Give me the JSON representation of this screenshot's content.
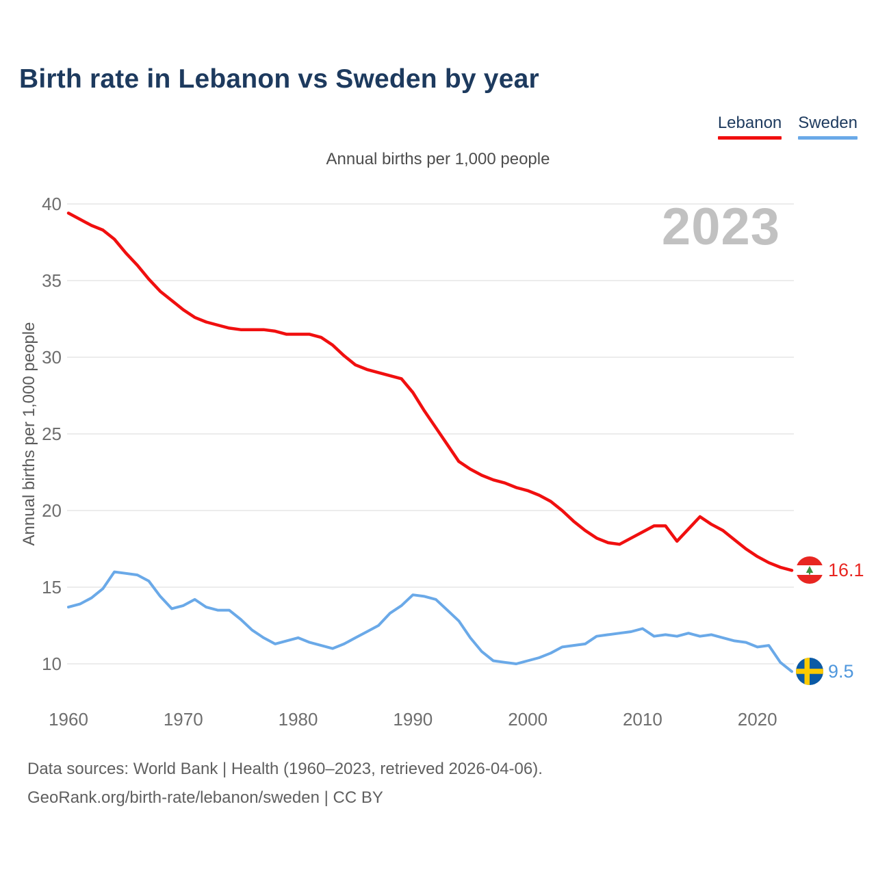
{
  "title": "Birth rate in Lebanon vs Sweden by year",
  "subtitle": "Annual births per 1,000 people",
  "watermark": "2023",
  "legend": {
    "items": [
      {
        "label": "Lebanon",
        "color": "#f00f0f"
      },
      {
        "label": "Sweden",
        "color": "#6aa9e8"
      }
    ]
  },
  "y_axis": {
    "title": "Annual births per 1,000 people",
    "ticks": [
      40,
      35,
      30,
      25,
      20,
      15,
      10
    ]
  },
  "x_axis": {
    "ticks": [
      1960,
      1970,
      1980,
      1990,
      2000,
      2010,
      2020
    ]
  },
  "end_labels": [
    {
      "series": "Lebanon",
      "value": "16.1",
      "color": "#e82621",
      "flag": "lebanon-flag-icon"
    },
    {
      "series": "Sweden",
      "value": "9.5",
      "color": "#4f97dd",
      "flag": "sweden-flag-icon"
    }
  ],
  "footer": {
    "line1": "Data sources: World Bank | Health (1960–2023, retrieved 2026-04-06).",
    "line2": "GeoRank.org/birth-rate/lebanon/sweden | CC BY"
  },
  "chart_data": {
    "type": "line",
    "title": "Birth rate in Lebanon vs Sweden by year",
    "xlabel": "",
    "ylabel": "Annual births per 1,000 people",
    "ylim": [
      10,
      40
    ],
    "xlim": [
      1960,
      2023
    ],
    "grid": "horizontal",
    "legend_position": "top-right",
    "x": [
      1960,
      1961,
      1962,
      1963,
      1964,
      1965,
      1966,
      1967,
      1968,
      1969,
      1970,
      1971,
      1972,
      1973,
      1974,
      1975,
      1976,
      1977,
      1978,
      1979,
      1980,
      1981,
      1982,
      1983,
      1984,
      1985,
      1986,
      1987,
      1988,
      1989,
      1990,
      1991,
      1992,
      1993,
      1994,
      1995,
      1996,
      1997,
      1998,
      1999,
      2000,
      2001,
      2002,
      2003,
      2004,
      2005,
      2006,
      2007,
      2008,
      2009,
      2010,
      2011,
      2012,
      2013,
      2014,
      2015,
      2016,
      2017,
      2018,
      2019,
      2020,
      2021,
      2022,
      2023
    ],
    "series": [
      {
        "name": "Lebanon",
        "color": "#f00f0f",
        "stroke_width": 4.5,
        "values": [
          39.4,
          39.0,
          38.6,
          38.3,
          37.7,
          36.8,
          36.0,
          35.1,
          34.3,
          33.7,
          33.1,
          32.6,
          32.3,
          32.1,
          31.9,
          31.8,
          31.8,
          31.8,
          31.7,
          31.5,
          31.5,
          31.5,
          31.3,
          30.8,
          30.1,
          29.5,
          29.2,
          29.0,
          28.8,
          28.6,
          27.7,
          26.5,
          25.4,
          24.3,
          23.2,
          22.7,
          22.3,
          22.0,
          21.8,
          21.5,
          21.3,
          21.0,
          20.6,
          20.0,
          19.3,
          18.7,
          18.2,
          17.9,
          17.8,
          18.2,
          18.6,
          19.0,
          19.0,
          18.0,
          18.8,
          19.6,
          19.1,
          18.7,
          18.1,
          17.5,
          17.0,
          16.6,
          16.3,
          16.1
        ]
      },
      {
        "name": "Sweden",
        "color": "#6aa9e8",
        "stroke_width": 4,
        "values": [
          13.7,
          13.9,
          14.3,
          14.9,
          16.0,
          15.9,
          15.8,
          15.4,
          14.4,
          13.6,
          13.8,
          14.2,
          13.7,
          13.5,
          13.5,
          12.9,
          12.2,
          11.7,
          11.3,
          11.5,
          11.7,
          11.4,
          11.2,
          11.0,
          11.3,
          11.7,
          12.1,
          12.5,
          13.3,
          13.8,
          14.5,
          14.4,
          14.2,
          13.5,
          12.8,
          11.7,
          10.8,
          10.2,
          10.1,
          10.0,
          10.2,
          10.4,
          10.7,
          11.1,
          11.2,
          11.3,
          11.8,
          11.9,
          12.0,
          12.1,
          12.3,
          11.8,
          11.9,
          11.8,
          12.0,
          11.8,
          11.9,
          11.7,
          11.5,
          11.4,
          11.1,
          11.2,
          10.1,
          9.5
        ]
      }
    ]
  }
}
